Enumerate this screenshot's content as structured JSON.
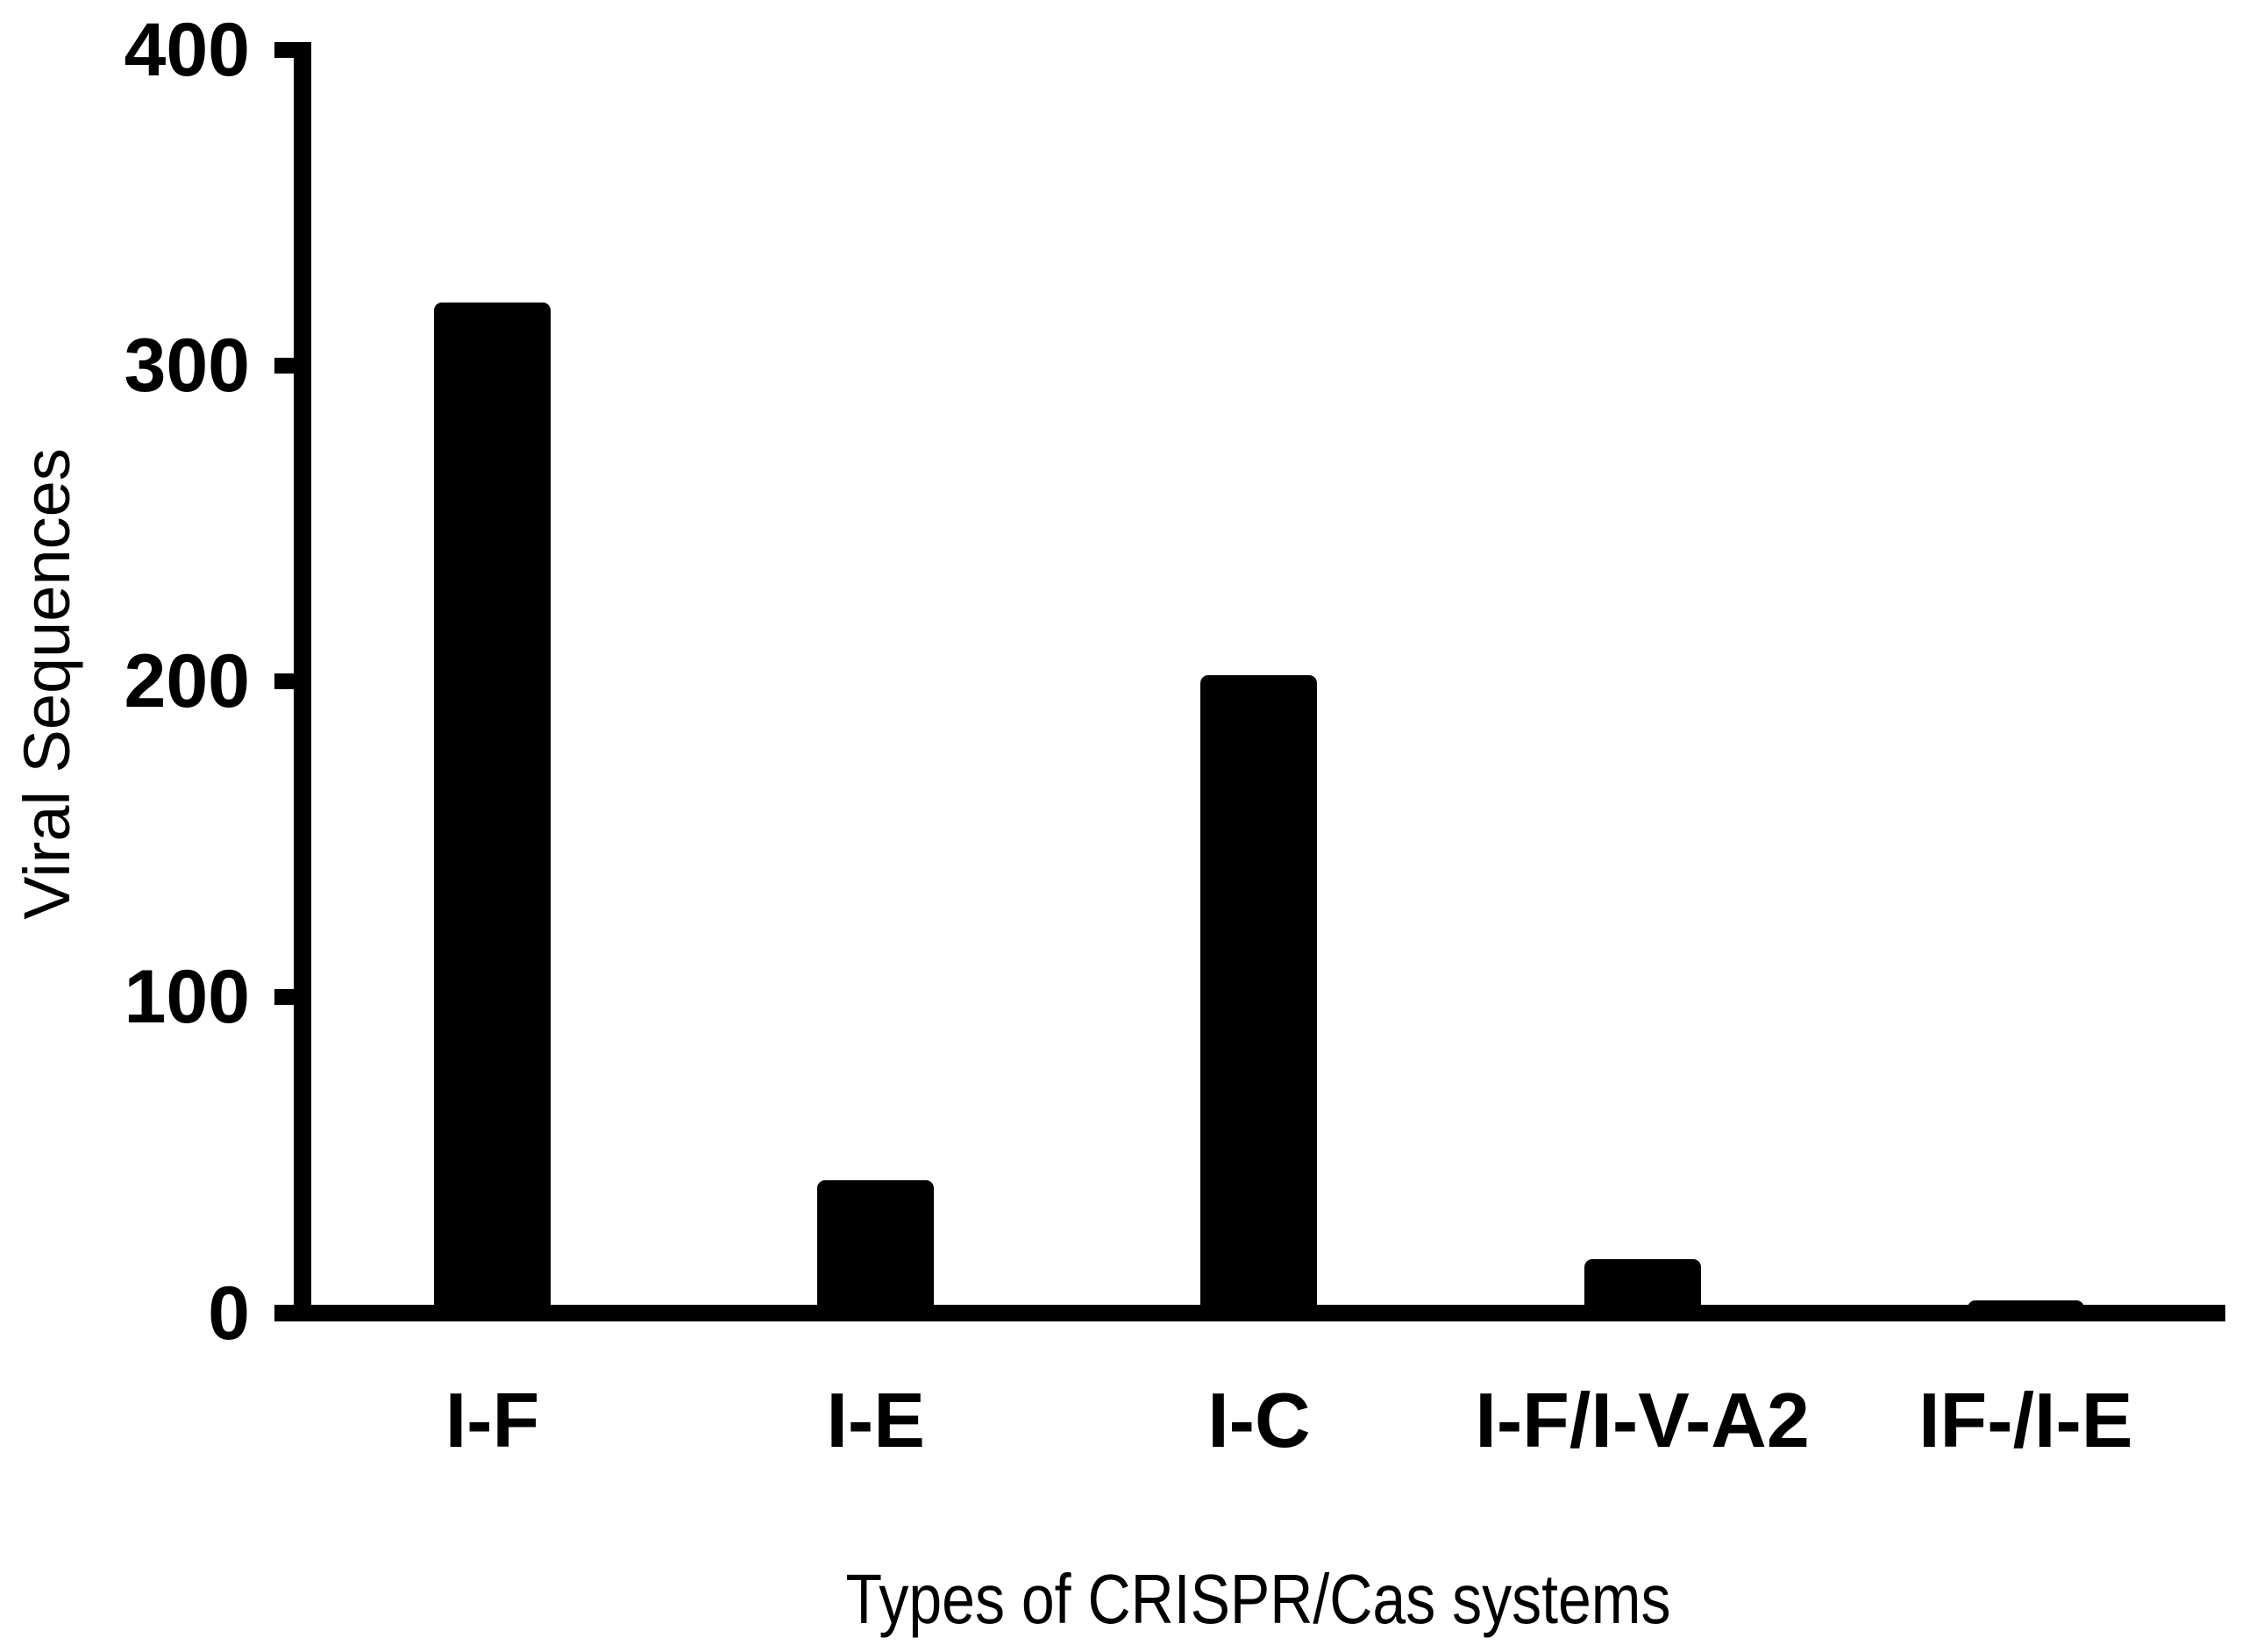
{
  "figure": {
    "background_color": "#ffffff",
    "ink_color": "#000000"
  },
  "chart_data": {
    "type": "bar",
    "title": "",
    "xlabel": "Types of CRISPR/Cas systems",
    "ylabel": "Viral Sequences",
    "categories": [
      "I-F",
      "I-E",
      "I-C",
      "I-F/I-V-A2",
      "IF-/I-E"
    ],
    "values": [
      320,
      42,
      202,
      17,
      4
    ],
    "bar_color": "#000000",
    "ylim": [
      0,
      400
    ],
    "yticks": [
      0,
      100,
      200,
      300,
      400
    ],
    "grid": false,
    "legend_position": "none"
  }
}
